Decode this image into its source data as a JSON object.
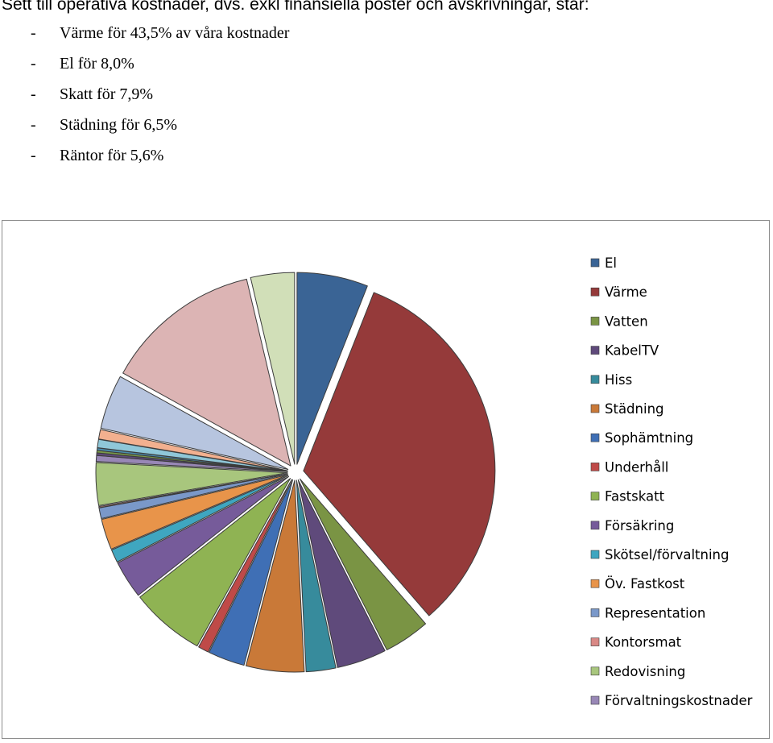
{
  "heading": "Sett till operativa kostnader, dvs. exkl finansiella poster och avskrivningar, står:",
  "bullets": [
    {
      "dash": "-",
      "text": "Värme för 43,5% av våra kostnader"
    },
    {
      "dash": "-",
      "text": "El för 8,0%"
    },
    {
      "dash": "-",
      "text": "Skatt för 7,9%"
    },
    {
      "dash": "-",
      "text": "Städning för 6,5%"
    },
    {
      "dash": "-",
      "text": "Räntor för 5,6%"
    }
  ],
  "chart_data": {
    "type": "pie",
    "title": "",
    "legend_position": "right",
    "start_angle_deg": 0,
    "direction": "clockwise",
    "exploded": true,
    "categories": [
      "El",
      "Värme",
      "Vatten",
      "KabelTV",
      "Hiss",
      "Städning",
      "Sophämtning",
      "Underhåll",
      "Fastskatt",
      "Försäkring",
      "Skötsel/förvaltning",
      "Öv. Fastkost",
      "Representation",
      "Kontorsmat",
      "Redovisning",
      "Förvaltningskostnader"
    ],
    "values": [
      6.0,
      32.7,
      3.9,
      4.2,
      2.5,
      4.9,
      3.1,
      0.9,
      6.3,
      3.2,
      1.1,
      2.6,
      0.9,
      0.1,
      3.6,
      0.5
    ],
    "colors": [
      "#3a6495",
      "#953a3a",
      "#7a9444",
      "#5f4a7b",
      "#378b9c",
      "#c97938",
      "#3f6fb5",
      "#bf4a48",
      "#8fb353",
      "#765b9a",
      "#3fa6c0",
      "#e8944a",
      "#7a98c9",
      "#d98885",
      "#a8c67d",
      "#9887b6"
    ],
    "extra_slices": [
      {
        "value": 0.2,
        "color": "#5f4a7b"
      },
      {
        "value": 0.2,
        "color": "#7a9a4a"
      },
      {
        "value": 0.2,
        "color": "#4b8eb0"
      },
      {
        "value": 0.7,
        "color": "#8fc7d8"
      },
      {
        "value": 0.8,
        "color": "#f2b08f"
      },
      {
        "value": 4.6,
        "color": "#b7c5df"
      },
      {
        "value": 13.3,
        "color": "#dcb4b4"
      },
      {
        "value": 3.7,
        "color": "#d1dfb8"
      }
    ]
  }
}
